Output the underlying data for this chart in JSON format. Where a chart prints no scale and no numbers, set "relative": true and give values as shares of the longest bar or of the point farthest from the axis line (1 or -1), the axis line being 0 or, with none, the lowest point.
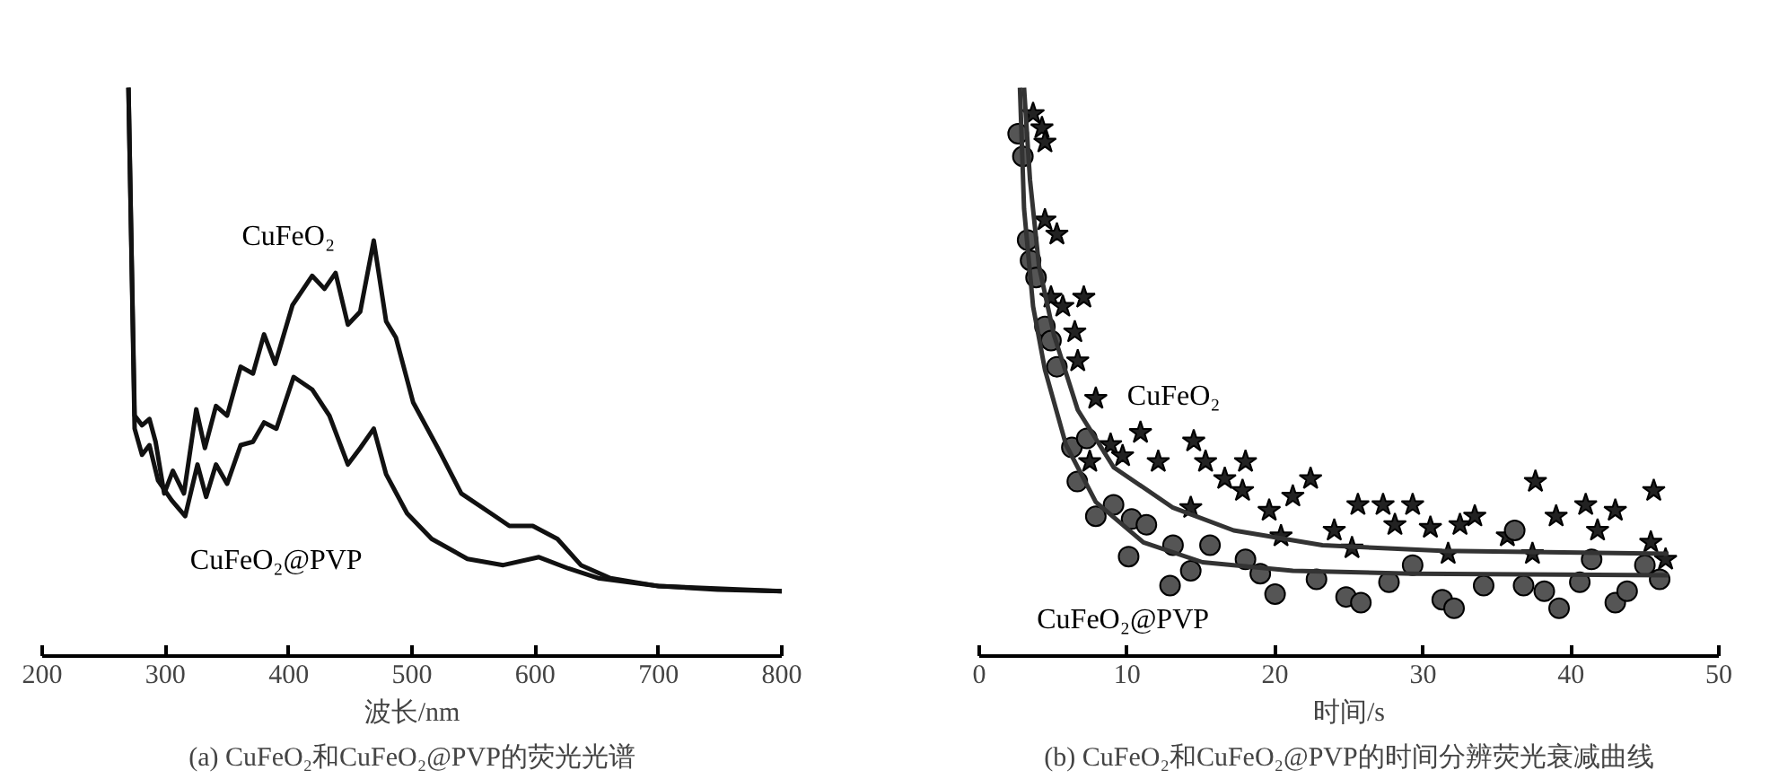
{
  "chart_data": [
    {
      "type": "line",
      "title": "(a) CuFeO₂和CuFeO₂@PVP的荧光光谱",
      "xlabel": "波长/nm",
      "relative": true,
      "xlim": [
        200,
        800
      ],
      "xticks": [
        200,
        300,
        400,
        500,
        600,
        700,
        800
      ],
      "tick_labels": "x",
      "grid": false,
      "line_style": "solid",
      "series": [
        {
          "name": "CuFeO₂",
          "color": "#111111",
          "x": [
            270,
            275,
            281,
            287,
            292,
            299,
            306,
            315,
            325,
            332,
            341,
            350,
            361,
            371,
            380,
            389,
            403,
            419,
            429,
            438,
            448,
            458,
            469,
            479,
            487,
            501,
            521,
            540,
            564,
            579,
            598,
            618,
            637,
            661,
            700,
            748,
            800
          ],
          "values": [
            1.0,
            0.423,
            0.406,
            0.417,
            0.377,
            0.286,
            0.326,
            0.286,
            0.434,
            0.366,
            0.44,
            0.423,
            0.509,
            0.497,
            0.566,
            0.514,
            0.617,
            0.669,
            0.646,
            0.674,
            0.583,
            0.606,
            0.731,
            0.589,
            0.56,
            0.446,
            0.366,
            0.286,
            0.251,
            0.229,
            0.229,
            0.206,
            0.16,
            0.137,
            0.123,
            0.117,
            0.114
          ]
        },
        {
          "name": "CuFeO₂@PVP",
          "color": "#111111",
          "x": [
            270,
            275,
            281,
            287,
            294,
            305,
            316,
            326,
            333,
            341,
            350,
            361,
            371,
            380,
            390,
            404,
            419,
            433,
            448,
            458,
            469,
            479,
            496,
            516,
            545,
            574,
            603,
            627,
            651,
            700,
            800
          ],
          "values": [
            1.0,
            0.4,
            0.354,
            0.371,
            0.309,
            0.274,
            0.246,
            0.337,
            0.28,
            0.337,
            0.303,
            0.371,
            0.377,
            0.411,
            0.4,
            0.491,
            0.469,
            0.423,
            0.337,
            0.366,
            0.4,
            0.32,
            0.251,
            0.206,
            0.171,
            0.16,
            0.174,
            0.154,
            0.137,
            0.123,
            0.114
          ]
        }
      ]
    },
    {
      "type": "scatter",
      "title": "(b) CuFeO₂和CuFeO₂@PVP的时间分辨荧光衰减曲线",
      "xlabel": "时间/s",
      "relative": true,
      "xlim": [
        0,
        50
      ],
      "xticks": [
        0,
        10,
        20,
        30,
        40,
        50
      ],
      "tick_labels": "x",
      "grid": false,
      "series": [
        {
          "name": "CuFeO₂",
          "type": "scatter",
          "marker": "star",
          "color": "#222222",
          "x": [
            3.64,
            4.24,
            4.44,
            4.44,
            5.25,
            4.85,
            7.07,
            5.65,
            6.46,
            6.66,
            7.88,
            7.47,
            8.88,
            10.9,
            9.69,
            12.1,
            14.5,
            15.3,
            18.0,
            16.6,
            17.8,
            14.3,
            19.6,
            21.2,
            22.4,
            25.6,
            27.3,
            29.3,
            24.0,
            28.1,
            30.5,
            32.5,
            33.5,
            37.6,
            35.7,
            39.0,
            41.0,
            43.0,
            45.6,
            41.8,
            45.4,
            46.4,
            37.4,
            31.7,
            25.2,
            20.4
          ],
          "values": [
            0.954,
            0.929,
            0.904,
            0.767,
            0.742,
            0.631,
            0.631,
            0.615,
            0.57,
            0.519,
            0.453,
            0.342,
            0.372,
            0.393,
            0.352,
            0.342,
            0.378,
            0.342,
            0.342,
            0.312,
            0.291,
            0.261,
            0.256,
            0.281,
            0.312,
            0.266,
            0.266,
            0.266,
            0.221,
            0.231,
            0.226,
            0.231,
            0.246,
            0.307,
            0.211,
            0.246,
            0.266,
            0.256,
            0.291,
            0.221,
            0.2,
            0.17,
            0.18,
            0.18,
            0.19,
            0.211
          ]
        },
        {
          "name": "CuFeO₂@PVP",
          "type": "scatter",
          "marker": "circle",
          "color": "#555555",
          "x": [
            2.63,
            2.95,
            3.27,
            3.47,
            3.84,
            4.44,
            4.85,
            5.25,
            6.26,
            7.27,
            6.63,
            9.08,
            7.88,
            10.3,
            10.1,
            11.3,
            13.1,
            12.9,
            15.6,
            14.3,
            18.0,
            20.0,
            19.0,
            22.8,
            24.8,
            25.8,
            27.7,
            29.3,
            31.3,
            32.1,
            34.1,
            36.2,
            36.8,
            38.2,
            39.2,
            40.6,
            43.0,
            43.8,
            46.0,
            45.0,
            41.4
          ],
          "values": [
            0.919,
            0.879,
            0.732,
            0.696,
            0.666,
            0.58,
            0.555,
            0.509,
            0.367,
            0.383,
            0.307,
            0.266,
            0.246,
            0.241,
            0.175,
            0.231,
            0.195,
            0.124,
            0.195,
            0.15,
            0.17,
            0.109,
            0.145,
            0.135,
            0.104,
            0.094,
            0.13,
            0.16,
            0.099,
            0.084,
            0.124,
            0.221,
            0.124,
            0.114,
            0.084,
            0.13,
            0.094,
            0.114,
            0.135,
            0.16,
            0.17
          ]
        },
        {
          "type": "line",
          "line_style": "solid",
          "color": "#333333",
          "x": [
            3.03,
            3.43,
            4.04,
            5.05,
            6.66,
            9.09,
            13.1,
            17.2,
            23.2,
            31.3,
            46.6
          ],
          "values": [
            1.0,
            0.838,
            0.686,
            0.565,
            0.433,
            0.332,
            0.261,
            0.221,
            0.195,
            0.185,
            0.18
          ]
        },
        {
          "type": "line",
          "line_style": "solid",
          "color": "#333333",
          "x": [
            2.75,
            3.03,
            3.64,
            4.44,
            5.86,
            7.88,
            11.1,
            15.1,
            21.2,
            29.3,
            46.6
          ],
          "values": [
            1.0,
            0.787,
            0.615,
            0.504,
            0.372,
            0.271,
            0.2,
            0.165,
            0.15,
            0.145,
            0.142
          ]
        }
      ]
    }
  ]
}
